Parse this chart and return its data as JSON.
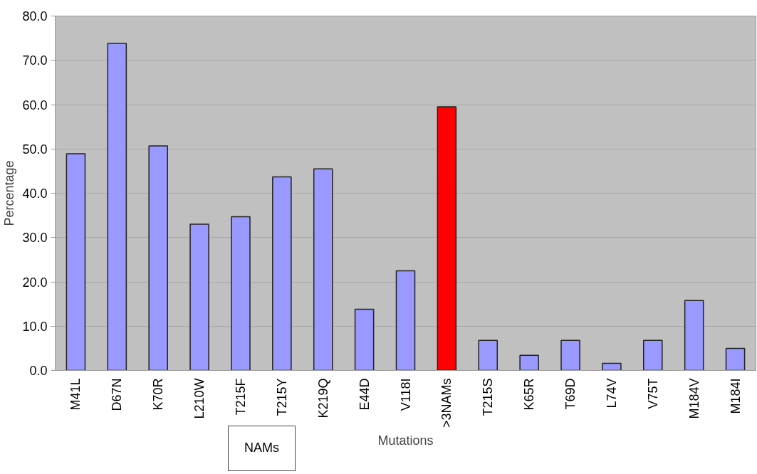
{
  "chart_data": {
    "type": "bar",
    "xlabel": "Mutations",
    "ylabel": "Percentage",
    "categories": [
      "M41L",
      "D67N",
      "K70R",
      "L210W",
      "T215F",
      "T215Y",
      "K219Q",
      "E44D",
      "V118I",
      ">3NAMs",
      "T215S",
      "K65R",
      "T69D",
      "L74V",
      "V75T",
      "M184V",
      "M184I"
    ],
    "values": [
      48.9,
      73.8,
      50.7,
      33.0,
      34.7,
      43.7,
      45.5,
      13.8,
      22.5,
      59.5,
      6.8,
      3.4,
      6.8,
      1.6,
      6.8,
      15.8,
      5.0
    ],
    "colors": [
      "#9999ff",
      "#9999ff",
      "#9999ff",
      "#9999ff",
      "#9999ff",
      "#9999ff",
      "#9999ff",
      "#9999ff",
      "#9999ff",
      "#ff0000",
      "#9999ff",
      "#9999ff",
      "#9999ff",
      "#9999ff",
      "#9999ff",
      "#9999ff",
      "#9999ff"
    ],
    "ylim": [
      0,
      80
    ],
    "yticks": [
      {
        "value": 0,
        "label": "0.0"
      },
      {
        "value": 10,
        "label": "10.0"
      },
      {
        "value": 20,
        "label": "20.0"
      },
      {
        "value": 30,
        "label": "30.0"
      },
      {
        "value": 40,
        "label": "40.0"
      },
      {
        "value": 50,
        "label": "50.0"
      },
      {
        "value": 60,
        "label": "60.0"
      },
      {
        "value": 70,
        "label": "70.0"
      },
      {
        "value": 80,
        "label": "80.0"
      }
    ],
    "grid": "y",
    "annotations": [
      "NAMs"
    ]
  }
}
